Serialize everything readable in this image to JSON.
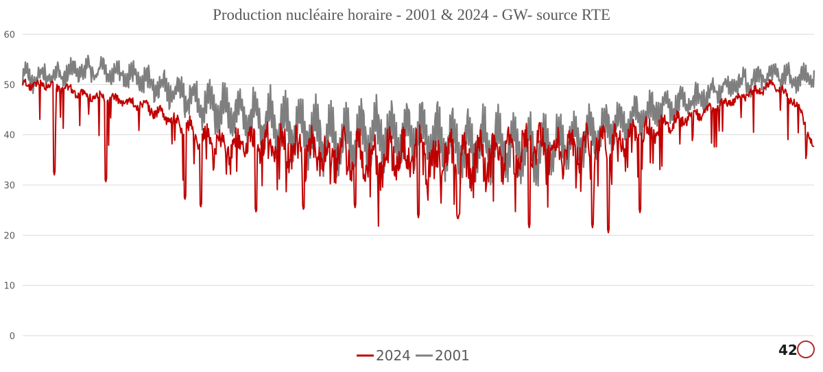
{
  "chart_data": {
    "type": "line",
    "title": "Production nucléaire horaire - 2001 & 2024 - GW-  source RTE",
    "xlabel": "",
    "ylabel": "",
    "x_axis": "hours of the year (no tick labels shown)",
    "ylim": [
      0,
      60
    ],
    "yticks": [
      "0",
      "10",
      "20",
      "30",
      "40",
      "50",
      "60"
    ],
    "grid": "horizontal",
    "legend_position": "bottom",
    "series": [
      {
        "name": "2024",
        "color": "#c00000",
        "trend_x": [
          0,
          0.03,
          0.08,
          0.15,
          0.2,
          0.25,
          0.3,
          0.35,
          0.4,
          0.45,
          0.5,
          0.55,
          0.6,
          0.65,
          0.7,
          0.75,
          0.8,
          0.85,
          0.9,
          0.95,
          0.98,
          1
        ],
        "trend_y": [
          50,
          50,
          48,
          46,
          42,
          38,
          38,
          37,
          36,
          35,
          36,
          35,
          36,
          38,
          37,
          39,
          41,
          44,
          47,
          50,
          46,
          37
        ],
        "dips": [
          {
            "at": 0.04,
            "to": 32
          },
          {
            "at": 0.105,
            "to": 30.5
          },
          {
            "at": 0.205,
            "to": 27
          },
          {
            "at": 0.225,
            "to": 25.5
          },
          {
            "at": 0.295,
            "to": 24.5
          },
          {
            "at": 0.355,
            "to": 25
          },
          {
            "at": 0.42,
            "to": 25.5
          },
          {
            "at": 0.5,
            "to": 23.5
          },
          {
            "at": 0.55,
            "to": 23
          },
          {
            "at": 0.64,
            "to": 21.5
          },
          {
            "at": 0.72,
            "to": 21.5
          },
          {
            "at": 0.74,
            "to": 20.5
          },
          {
            "at": 0.78,
            "to": 24.5
          }
        ]
      },
      {
        "name": "2001",
        "color": "#7f7f7f",
        "trend_x": [
          0,
          0.05,
          0.1,
          0.15,
          0.2,
          0.25,
          0.3,
          0.35,
          0.4,
          0.45,
          0.5,
          0.55,
          0.6,
          0.65,
          0.7,
          0.75,
          0.8,
          0.85,
          0.9,
          0.95,
          0.98,
          1
        ],
        "trend_y": [
          51,
          52,
          53,
          51,
          48,
          45,
          43,
          41,
          39,
          40,
          40,
          38,
          38,
          37,
          39,
          42,
          45,
          47,
          50,
          52,
          51,
          52
        ]
      }
    ]
  },
  "legend": {
    "item1": "2024",
    "item2": "2001"
  },
  "logo": {
    "number": "42"
  }
}
